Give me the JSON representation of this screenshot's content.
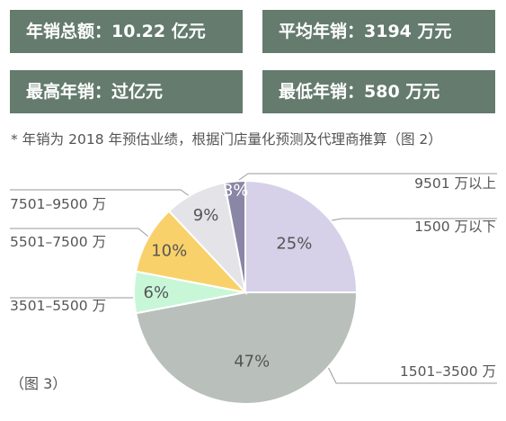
{
  "stats": [
    {
      "label": "年销总额：",
      "value": "10.22 亿元"
    },
    {
      "label": "平均年销：",
      "value": "3194 万元"
    },
    {
      "label": "最高年销：",
      "value": "过亿元"
    },
    {
      "label": "最低年销：",
      "value": "580 万元"
    }
  ],
  "note": "* 年销为 2018 年预估业绩，根据门店量化预测及代理商推算（图 2）",
  "caption": "（图 3）",
  "chart_data": {
    "type": "pie",
    "categories": [
      "1500 万以下",
      "1501–3500 万",
      "3501–5500 万",
      "5501–7500 万",
      "7501–9500 万",
      "9501 万以上"
    ],
    "values": [
      25,
      47,
      6,
      10,
      9,
      3
    ],
    "value_labels": [
      "25%",
      "47%",
      "6%",
      "10%",
      "9%",
      "3%"
    ],
    "colors": [
      "#d6d0e8",
      "#b9bfbb",
      "#c8f7d8",
      "#f9d16a",
      "#e3e3e8",
      "#8a86a6"
    ],
    "start_direction": "12 o'clock, clockwise",
    "legend": "category labels with leader lines outside the pie"
  }
}
